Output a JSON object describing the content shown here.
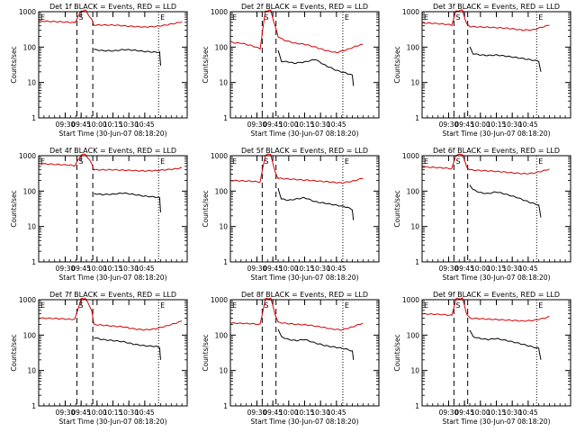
{
  "figure": {
    "background": "#ffffff",
    "axis_color": "#000000"
  },
  "colors": {
    "events": "#000000",
    "lld": "#d40000"
  },
  "common": {
    "ylabel": "Counts/sec",
    "yticks": [
      "1",
      "10",
      "100",
      "1000"
    ],
    "yrange": [
      1,
      1000
    ],
    "type": "line",
    "yscale": "log"
  },
  "chart_data": [
    {
      "panel": "det-1f",
      "title": "Det 1f BLACK = Events, RED = LLD",
      "xlabel": "Start Time (30-Jun-07 08:18:20)",
      "xticks": [
        {
          "label": "09:30",
          "t": 0.25
        },
        {
          "label": "09:45",
          "t": 0.4
        },
        {
          "label": "10:00",
          "t": 0.55
        },
        {
          "label": "10:15",
          "t": 0.7
        },
        {
          "label": "10:30",
          "t": 0.85
        },
        {
          "label": "10:45",
          "t": 1.0
        }
      ],
      "markers": [
        {
          "label": "E",
          "t": 0.0,
          "style": "dot"
        },
        {
          "label": "S",
          "t": 0.36,
          "style": "dash"
        },
        {
          "label": "",
          "t": 0.51,
          "style": "dash"
        },
        {
          "label": "E",
          "t": 1.13,
          "style": "dot"
        }
      ],
      "series": [
        {
          "name": "RED = LLD",
          "t": [
            0.0,
            0.1,
            0.2,
            0.3,
            0.34,
            0.4,
            0.44,
            0.5,
            0.52,
            0.6,
            0.7,
            0.8,
            0.9,
            1.0,
            1.1,
            1.2,
            1.3,
            1.35
          ],
          "v": [
            550,
            530,
            520,
            500,
            490,
            1050,
            1100,
            600,
            420,
            420,
            420,
            400,
            380,
            370,
            380,
            420,
            480,
            520
          ]
        },
        {
          "name": "BLACK = Events",
          "t": [
            0.52,
            0.6,
            0.7,
            0.8,
            0.9,
            1.0,
            1.1,
            1.14,
            1.15
          ],
          "v": [
            85,
            80,
            78,
            85,
            82,
            75,
            72,
            72,
            30
          ]
        }
      ]
    },
    {
      "panel": "det-2f",
      "title": "Det 2f BLACK = Events, RED = LLD",
      "xlabel": "Start Time (30-Jun-07 08:18:20)",
      "xticks": [
        {
          "label": "09:30",
          "t": 0.25
        },
        {
          "label": "09:45",
          "t": 0.4
        },
        {
          "label": "10:00",
          "t": 0.55
        },
        {
          "label": "10:15",
          "t": 0.7
        },
        {
          "label": "10:30",
          "t": 0.85
        },
        {
          "label": "10:45",
          "t": 1.0
        }
      ],
      "markers": [
        {
          "label": "E",
          "t": 0.0,
          "style": "dot"
        },
        {
          "label": "S",
          "t": 0.3,
          "style": "dash"
        },
        {
          "label": "",
          "t": 0.43,
          "style": "dash"
        },
        {
          "label": "E",
          "t": 1.06,
          "style": "dot"
        }
      ],
      "series": [
        {
          "name": "RED = LLD",
          "t": [
            0.0,
            0.05,
            0.1,
            0.2,
            0.28,
            0.33,
            0.38,
            0.42,
            0.45,
            0.5,
            0.6,
            0.7,
            0.8,
            0.9,
            1.0,
            1.1,
            1.2,
            1.25
          ],
          "v": [
            140,
            130,
            130,
            110,
            90,
            1050,
            1100,
            400,
            200,
            160,
            130,
            120,
            100,
            80,
            70,
            85,
            110,
            120
          ]
        },
        {
          "name": "BLACK = Events",
          "t": [
            0.45,
            0.48,
            0.55,
            0.6,
            0.7,
            0.8,
            0.9,
            1.0,
            1.1,
            1.15,
            1.16
          ],
          "v": [
            80,
            40,
            38,
            35,
            38,
            45,
            30,
            22,
            18,
            16,
            8
          ]
        }
      ]
    },
    {
      "panel": "det-3f",
      "title": "Det 3f BLACK = Events, RED = LLD",
      "xlabel": "Start Time (30-Jun-07 08:18:20)",
      "xticks": [
        {
          "label": "09:30",
          "t": 0.25
        },
        {
          "label": "09:45",
          "t": 0.4
        },
        {
          "label": "10:00",
          "t": 0.55
        },
        {
          "label": "10:15",
          "t": 0.7
        },
        {
          "label": "10:30",
          "t": 0.85
        },
        {
          "label": "10:45",
          "t": 1.0
        }
      ],
      "markers": [
        {
          "label": "E",
          "t": 0.0,
          "style": "dot"
        },
        {
          "label": "S",
          "t": 0.3,
          "style": "dash"
        },
        {
          "label": "",
          "t": 0.43,
          "style": "dash"
        },
        {
          "label": "E",
          "t": 1.08,
          "style": "dot"
        }
      ],
      "series": [
        {
          "name": "RED = LLD",
          "t": [
            0.0,
            0.1,
            0.2,
            0.28,
            0.32,
            0.38,
            0.42,
            0.45,
            0.55,
            0.65,
            0.75,
            0.85,
            0.95,
            1.05,
            1.15,
            1.2
          ],
          "v": [
            480,
            470,
            450,
            420,
            1050,
            1100,
            450,
            380,
            370,
            360,
            350,
            330,
            300,
            310,
            380,
            420
          ]
        },
        {
          "name": "BLACK = Events",
          "t": [
            0.45,
            0.48,
            0.55,
            0.62,
            0.7,
            0.8,
            0.9,
            1.0,
            1.1,
            1.12
          ],
          "v": [
            100,
            65,
            60,
            58,
            60,
            55,
            50,
            45,
            40,
            20
          ]
        }
      ]
    },
    {
      "panel": "det-4f",
      "title": "Det 4f BLACK = Events, RED = LLD",
      "xlabel": "Start Time (30-Jun-07 08:18:20)",
      "xticks": [
        {
          "label": "09:30",
          "t": 0.25
        },
        {
          "label": "09:45",
          "t": 0.4
        },
        {
          "label": "10:00",
          "t": 0.55
        },
        {
          "label": "10:15",
          "t": 0.7
        },
        {
          "label": "10:30",
          "t": 0.85
        },
        {
          "label": "10:45",
          "t": 1.0
        }
      ],
      "markers": [
        {
          "label": "E",
          "t": 0.0,
          "style": "dot"
        },
        {
          "label": "S",
          "t": 0.36,
          "style": "dash"
        },
        {
          "label": "",
          "t": 0.51,
          "style": "dash"
        },
        {
          "label": "E",
          "t": 1.13,
          "style": "dot"
        }
      ],
      "series": [
        {
          "name": "RED = LLD",
          "t": [
            0.0,
            0.1,
            0.2,
            0.3,
            0.34,
            0.4,
            0.44,
            0.5,
            0.52,
            0.6,
            0.7,
            0.8,
            0.9,
            1.0,
            1.1,
            1.2,
            1.3,
            1.35
          ],
          "v": [
            600,
            580,
            560,
            540,
            520,
            1050,
            1100,
            600,
            400,
            400,
            400,
            390,
            380,
            370,
            380,
            400,
            430,
            460
          ]
        },
        {
          "name": "BLACK = Events",
          "t": [
            0.52,
            0.6,
            0.7,
            0.8,
            0.9,
            1.0,
            1.1,
            1.14,
            1.15
          ],
          "v": [
            85,
            80,
            82,
            88,
            80,
            72,
            68,
            65,
            25
          ]
        }
      ]
    },
    {
      "panel": "det-5f",
      "title": "Det 5f BLACK = Events, RED = LLD",
      "xlabel": "Start Time (30-Jun-07 08:18:20)",
      "xticks": [
        {
          "label": "09:30",
          "t": 0.25
        },
        {
          "label": "09:45",
          "t": 0.4
        },
        {
          "label": "10:00",
          "t": 0.55
        },
        {
          "label": "10:15",
          "t": 0.7
        },
        {
          "label": "10:30",
          "t": 0.85
        },
        {
          "label": "10:45",
          "t": 1.0
        }
      ],
      "markers": [
        {
          "label": "E",
          "t": 0.0,
          "style": "dot"
        },
        {
          "label": "S",
          "t": 0.3,
          "style": "dash"
        },
        {
          "label": "",
          "t": 0.43,
          "style": "dash"
        },
        {
          "label": "E",
          "t": 1.06,
          "style": "dot"
        }
      ],
      "series": [
        {
          "name": "RED = LLD",
          "t": [
            0.0,
            0.1,
            0.2,
            0.28,
            0.33,
            0.38,
            0.42,
            0.45,
            0.55,
            0.65,
            0.75,
            0.85,
            0.95,
            1.05,
            1.15,
            1.25
          ],
          "v": [
            200,
            195,
            190,
            180,
            1050,
            1100,
            350,
            230,
            220,
            210,
            200,
            190,
            180,
            170,
            190,
            230
          ]
        },
        {
          "name": "BLACK = Events",
          "t": [
            0.45,
            0.48,
            0.55,
            0.62,
            0.7,
            0.8,
            0.9,
            1.0,
            1.1,
            1.15,
            1.16
          ],
          "v": [
            120,
            60,
            55,
            60,
            65,
            50,
            45,
            40,
            35,
            30,
            15
          ]
        }
      ]
    },
    {
      "panel": "det-6f",
      "title": "Det 6f BLACK = Events, RED = LLD",
      "xlabel": "Start Time (30-Jun-07 08:18:20)",
      "xticks": [
        {
          "label": "09:30",
          "t": 0.25
        },
        {
          "label": "09:45",
          "t": 0.4
        },
        {
          "label": "10:00",
          "t": 0.55
        },
        {
          "label": "10:15",
          "t": 0.7
        },
        {
          "label": "10:30",
          "t": 0.85
        },
        {
          "label": "10:45",
          "t": 1.0
        }
      ],
      "markers": [
        {
          "label": "E",
          "t": 0.0,
          "style": "dot"
        },
        {
          "label": "S",
          "t": 0.3,
          "style": "dash"
        },
        {
          "label": "",
          "t": 0.43,
          "style": "dash"
        },
        {
          "label": "E",
          "t": 1.08,
          "style": "dot"
        }
      ],
      "series": [
        {
          "name": "RED = LLD",
          "t": [
            0.0,
            0.1,
            0.2,
            0.28,
            0.32,
            0.38,
            0.42,
            0.45,
            0.55,
            0.65,
            0.75,
            0.85,
            0.95,
            1.05,
            1.15,
            1.2
          ],
          "v": [
            480,
            470,
            450,
            430,
            1050,
            1100,
            480,
            400,
            380,
            370,
            350,
            330,
            310,
            320,
            380,
            420
          ]
        },
        {
          "name": "BLACK = Events",
          "t": [
            0.45,
            0.48,
            0.55,
            0.62,
            0.7,
            0.8,
            0.9,
            1.0,
            1.1,
            1.12
          ],
          "v": [
            150,
            110,
            90,
            85,
            95,
            80,
            65,
            50,
            40,
            18
          ]
        }
      ]
    },
    {
      "panel": "det-7f",
      "title": "Det 7f BLACK = Events, RED = LLD",
      "xlabel": "Start Time (30-Jun-07 08:18:20)",
      "xticks": [
        {
          "label": "09:30",
          "t": 0.25
        },
        {
          "label": "09:45",
          "t": 0.4
        },
        {
          "label": "10:00",
          "t": 0.55
        },
        {
          "label": "10:15",
          "t": 0.7
        },
        {
          "label": "10:30",
          "t": 0.85
        },
        {
          "label": "10:45",
          "t": 1.0
        }
      ],
      "markers": [
        {
          "label": "E",
          "t": 0.0,
          "style": "dot"
        },
        {
          "label": "S",
          "t": 0.36,
          "style": "dash"
        },
        {
          "label": "",
          "t": 0.51,
          "style": "dash"
        },
        {
          "label": "E",
          "t": 1.13,
          "style": "dot"
        }
      ],
      "series": [
        {
          "name": "RED = LLD",
          "t": [
            0.0,
            0.1,
            0.2,
            0.3,
            0.34,
            0.4,
            0.44,
            0.5,
            0.52,
            0.6,
            0.7,
            0.8,
            0.9,
            1.0,
            1.1,
            1.2,
            1.3,
            1.35
          ],
          "v": [
            300,
            300,
            290,
            280,
            280,
            1050,
            1100,
            500,
            200,
            190,
            180,
            170,
            150,
            140,
            150,
            180,
            220,
            250
          ]
        },
        {
          "name": "BLACK = Events",
          "t": [
            0.52,
            0.6,
            0.7,
            0.8,
            0.9,
            1.0,
            1.1,
            1.14,
            1.15
          ],
          "v": [
            85,
            75,
            70,
            65,
            55,
            50,
            48,
            45,
            20
          ]
        }
      ]
    },
    {
      "panel": "det-8f",
      "title": "Det 8f BLACK = Events, RED = LLD",
      "xlabel": "Start Time (30-Jun-07 08:18:20)",
      "xticks": [
        {
          "label": "09:30",
          "t": 0.25
        },
        {
          "label": "09:45",
          "t": 0.4
        },
        {
          "label": "10:00",
          "t": 0.55
        },
        {
          "label": "10:15",
          "t": 0.7
        },
        {
          "label": "10:30",
          "t": 0.85
        },
        {
          "label": "10:45",
          "t": 1.0
        }
      ],
      "markers": [
        {
          "label": "E",
          "t": 0.0,
          "style": "dot"
        },
        {
          "label": "S",
          "t": 0.3,
          "style": "dash"
        },
        {
          "label": "",
          "t": 0.43,
          "style": "dash"
        },
        {
          "label": "E",
          "t": 1.06,
          "style": "dot"
        }
      ],
      "series": [
        {
          "name": "RED = LLD",
          "t": [
            0.0,
            0.1,
            0.2,
            0.28,
            0.33,
            0.38,
            0.42,
            0.45,
            0.55,
            0.65,
            0.75,
            0.85,
            0.95,
            1.05,
            1.15,
            1.25
          ],
          "v": [
            220,
            215,
            210,
            200,
            1050,
            1100,
            400,
            230,
            210,
            200,
            190,
            170,
            150,
            140,
            170,
            220
          ]
        },
        {
          "name": "BLACK = Events",
          "t": [
            0.45,
            0.48,
            0.55,
            0.62,
            0.7,
            0.8,
            0.9,
            1.0,
            1.1,
            1.15,
            1.16
          ],
          "v": [
            150,
            90,
            75,
            70,
            75,
            60,
            50,
            45,
            40,
            35,
            20
          ]
        }
      ]
    },
    {
      "panel": "det-9f",
      "title": "Det 9f BLACK = Events, RED = LLD",
      "xlabel": "Start Time (30-Jun-07 08:18:20)",
      "xticks": [
        {
          "label": "09:30",
          "t": 0.25
        },
        {
          "label": "09:45",
          "t": 0.4
        },
        {
          "label": "10:00",
          "t": 0.55
        },
        {
          "label": "10:15",
          "t": 0.7
        },
        {
          "label": "10:30",
          "t": 0.85
        },
        {
          "label": "10:45",
          "t": 1.0
        }
      ],
      "markers": [
        {
          "label": "E",
          "t": 0.0,
          "style": "dot"
        },
        {
          "label": "S",
          "t": 0.3,
          "style": "dash"
        },
        {
          "label": "",
          "t": 0.43,
          "style": "dash"
        },
        {
          "label": "E",
          "t": 1.08,
          "style": "dot"
        }
      ],
      "series": [
        {
          "name": "RED = LLD",
          "t": [
            0.0,
            0.1,
            0.2,
            0.28,
            0.32,
            0.38,
            0.42,
            0.45,
            0.55,
            0.65,
            0.75,
            0.85,
            0.95,
            1.05,
            1.15,
            1.2
          ],
          "v": [
            400,
            390,
            380,
            360,
            1050,
            1100,
            400,
            300,
            290,
            280,
            270,
            260,
            250,
            260,
            300,
            330
          ]
        },
        {
          "name": "BLACK = Events",
          "t": [
            0.45,
            0.48,
            0.55,
            0.62,
            0.7,
            0.8,
            0.9,
            1.0,
            1.1,
            1.12
          ],
          "v": [
            140,
            90,
            80,
            75,
            80,
            70,
            60,
            50,
            42,
            20
          ]
        }
      ]
    }
  ]
}
